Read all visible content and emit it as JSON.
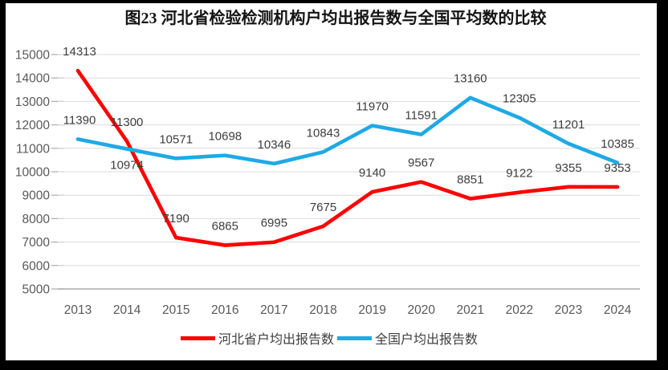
{
  "chart_data": {
    "type": "line",
    "title": "图23  河北省检验检测机构户均出报告数与全国平均数的比较",
    "categories": [
      "2013",
      "2014",
      "2015",
      "2016",
      "2017",
      "2018",
      "2019",
      "2020",
      "2021",
      "2022",
      "2023",
      "2024"
    ],
    "series": [
      {
        "id": "hebei",
        "name": "河北省户均出报告数",
        "color": "#FE0000",
        "values": [
          14313,
          11300,
          7190,
          6865,
          6995,
          7675,
          9140,
          9567,
          8851,
          9122,
          9355,
          9353
        ],
        "label_below_indices": []
      },
      {
        "id": "national",
        "name": "全国户均出报告数",
        "color": "#1FA9E5",
        "values": [
          11390,
          10974,
          10571,
          10698,
          10346,
          10843,
          11970,
          11591,
          13160,
          12305,
          11201,
          10385
        ],
        "label_below_indices": [
          1
        ]
      }
    ],
    "xlabel": "",
    "ylabel": "",
    "ylim": [
      5000,
      15000
    ],
    "ytick_step": 1000,
    "grid": true,
    "legend_position": "bottom",
    "gridline_color": "#DCDCDC",
    "axis_line_color": "#ABABAB",
    "axis_text_color": "#595959",
    "data_label_color": "#3D3D3D",
    "frame_color": "#000000",
    "background_color": "#FFFFFF"
  }
}
